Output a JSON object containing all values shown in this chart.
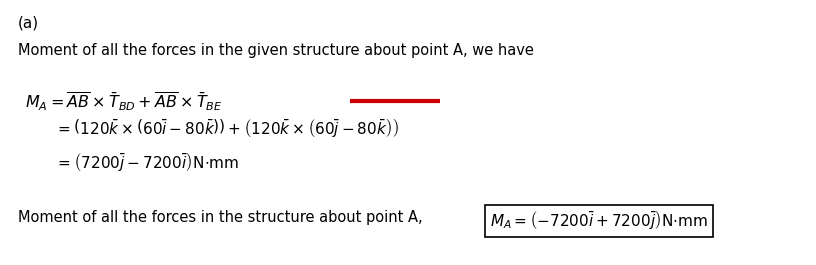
{
  "bg_color": "#ffffff",
  "label_a": "(a)",
  "line1": "Moment of all the forces in the given structure about point A, we have",
  "line2_text": "$M_{A} = \\overline{AB}\\times\\bar{T}_{BD} + \\overline{AB}\\times\\bar{T}_{BE}$",
  "line3_text": "$= \\left(120\\bar{k}\\times\\left(60\\bar{i}-80\\bar{k}\\right)\\right)+\\left(120\\bar{k}\\times\\left(60\\bar{j}-80\\bar{k}\\right)\\right)$",
  "line4_text": "$= \\left(7200\\bar{j}-7200\\bar{i}\\right)\\mathrm{N{\\cdot}mm}$",
  "line5_prefix": "Moment of all the forces in the structure about point A,",
  "line5_box": "$M_{A}=\\left(-7200\\bar{i}+7200\\bar{j}\\right)\\mathrm{N{\\cdot}mm}$",
  "red_line_xstart": 0.425,
  "red_line_xend": 0.535,
  "red_line_color": "#cc0000",
  "red_line_lw": 3.0
}
